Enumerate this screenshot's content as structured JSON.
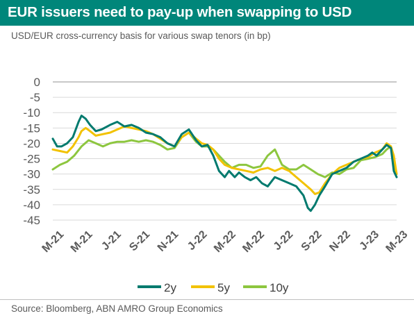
{
  "header": {
    "title": "EUR issuers need to pay-up when swapping to USD",
    "subtitle": "USD/EUR cross-currency basis for various swap tenors (in bp)"
  },
  "footer": {
    "source": "Source: Bloomberg, ABN AMRO Group Economics"
  },
  "colors": {
    "title_bar": "#00867a",
    "2y": "#007a6e",
    "5y": "#f2c200",
    "10y": "#8dc63f",
    "grid": "#d9d9d9"
  },
  "chart_data": {
    "type": "line",
    "title": "",
    "xlabel": "",
    "ylabel": "",
    "ylim": [
      -45,
      0
    ],
    "yticks": [
      0,
      -5,
      -10,
      -15,
      -20,
      -25,
      -30,
      -35,
      -40,
      -45
    ],
    "xlim": [
      0,
      24
    ],
    "xtick_positions": [
      0,
      2,
      4,
      6,
      8,
      10,
      12,
      14,
      16,
      18,
      20,
      22,
      24
    ],
    "xtick_labels": [
      "M-21",
      "M-21",
      "J-21",
      "S-21",
      "N-21",
      "J-22",
      "M-22",
      "M-22",
      "J-22",
      "S-22",
      "N-22",
      "J-23",
      "M-23"
    ],
    "grid": "horizontal",
    "legend": "bottom-center",
    "series": [
      {
        "name": "2y",
        "color": "#007a6e",
        "x": [
          0,
          0.3,
          0.6,
          1.0,
          1.4,
          1.8,
          2.0,
          2.3,
          2.6,
          3.0,
          3.4,
          4.0,
          4.5,
          5.0,
          5.5,
          6.0,
          6.5,
          7.0,
          7.5,
          8.0,
          8.5,
          9.0,
          9.5,
          10.0,
          10.4,
          10.8,
          11.2,
          11.6,
          12.0,
          12.3,
          12.7,
          13.0,
          13.4,
          13.8,
          14.2,
          14.6,
          15.0,
          15.5,
          16.0,
          16.5,
          17.0,
          17.5,
          17.8,
          18.0,
          18.3,
          18.6,
          19.0,
          19.5,
          20.0,
          20.5,
          21.0,
          21.5,
          22.0,
          22.3,
          22.6,
          23.0,
          23.3,
          23.6,
          23.8,
          24.0
        ],
        "values": [
          -18.5,
          -21,
          -21,
          -20,
          -18,
          -13,
          -11,
          -12,
          -14,
          -16,
          -15.5,
          -14,
          -13,
          -14.5,
          -14,
          -15,
          -16.5,
          -17,
          -18,
          -20,
          -21,
          -17,
          -15.5,
          -19,
          -21,
          -20.5,
          -24,
          -29,
          -31,
          -29,
          -31,
          -29.5,
          -31,
          -32,
          -31,
          -33,
          -34,
          -31,
          -32,
          -33,
          -34,
          -37,
          -41,
          -42,
          -40,
          -37,
          -34,
          -30,
          -29,
          -28,
          -26,
          -25,
          -24,
          -23,
          -24,
          -22,
          -20.5,
          -21.5,
          -29,
          -31
        ]
      },
      {
        "name": "5y",
        "color": "#f2c200",
        "x": [
          0,
          0.5,
          1.0,
          1.4,
          1.8,
          2.0,
          2.3,
          2.6,
          3.0,
          3.5,
          4.0,
          4.5,
          5.0,
          5.5,
          6.0,
          6.5,
          7.0,
          7.5,
          8.0,
          8.5,
          9.0,
          9.5,
          10.0,
          10.4,
          10.8,
          11.2,
          11.6,
          12.0,
          12.5,
          13.0,
          13.5,
          14.0,
          14.5,
          15.0,
          15.5,
          16.0,
          16.5,
          17.0,
          17.5,
          18.0,
          18.3,
          18.6,
          19.0,
          19.5,
          20.0,
          20.5,
          21.0,
          21.5,
          22.0,
          22.5,
          23.0,
          23.3,
          23.6,
          23.8,
          24.0
        ],
        "values": [
          -22,
          -22.5,
          -23,
          -21,
          -18,
          -16,
          -15,
          -16,
          -17.5,
          -17,
          -16.5,
          -15.5,
          -14.5,
          -15,
          -15.5,
          -16,
          -17,
          -18.5,
          -20,
          -21,
          -18,
          -16.5,
          -18.5,
          -20,
          -20.5,
          -22,
          -25,
          -27,
          -28,
          -28.5,
          -29,
          -29.5,
          -28.5,
          -28,
          -29,
          -28,
          -29,
          -31,
          -33,
          -35,
          -36.5,
          -36,
          -33,
          -30,
          -28,
          -27,
          -26,
          -25,
          -24.5,
          -23,
          -22,
          -20,
          -21,
          -24,
          -30
        ]
      },
      {
        "name": "10y",
        "color": "#8dc63f",
        "x": [
          0,
          0.5,
          1.0,
          1.5,
          2.0,
          2.5,
          3.0,
          3.5,
          4.0,
          4.5,
          5.0,
          5.5,
          6.0,
          6.5,
          7.0,
          7.5,
          8.0,
          8.5,
          9.0,
          9.5,
          10.0,
          10.4,
          10.8,
          11.2,
          11.6,
          12.0,
          12.5,
          13.0,
          13.5,
          14.0,
          14.5,
          15.0,
          15.5,
          16.0,
          16.5,
          17.0,
          17.5,
          18.0,
          18.5,
          19.0,
          19.5,
          20.0,
          20.5,
          21.0,
          21.5,
          22.0,
          22.5,
          23.0,
          23.3,
          23.6,
          23.8,
          24.0
        ],
        "values": [
          -28.5,
          -27,
          -26,
          -24,
          -21,
          -19,
          -20,
          -21,
          -20,
          -19.5,
          -19.5,
          -19,
          -19.5,
          -19,
          -19.5,
          -20.5,
          -22,
          -21.5,
          -18,
          -16.5,
          -19.5,
          -21,
          -21,
          -22,
          -24,
          -26,
          -28,
          -27,
          -27,
          -28,
          -27.5,
          -24,
          -22,
          -27,
          -28.5,
          -28.5,
          -27,
          -28.5,
          -30,
          -31,
          -29.5,
          -30,
          -28.5,
          -28,
          -25.5,
          -25,
          -24.5,
          -23.5,
          -22,
          -21,
          -26,
          -30
        ]
      }
    ]
  }
}
